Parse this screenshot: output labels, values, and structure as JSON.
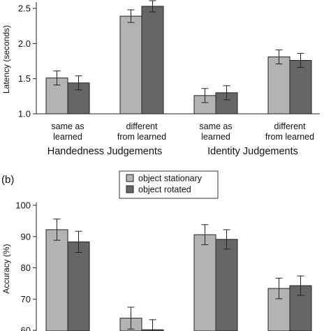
{
  "panel_b_label": "(b)",
  "legend": {
    "entries": [
      {
        "label": "object stationary",
        "color": "#b3b3b3"
      },
      {
        "label": "object rotated",
        "color": "#666666"
      }
    ]
  },
  "colors": {
    "stationary": "#b3b3b3",
    "rotated": "#666666"
  },
  "chart_data": [
    {
      "type": "bar",
      "panel": "a",
      "ylabel": "Latency (seconds)",
      "ylim": [
        1.0,
        2.55
      ],
      "yticks": [
        "1.0",
        "1.5",
        "2.0",
        "2.5"
      ],
      "ytick_values": [
        1.0,
        1.5,
        2.0,
        2.5
      ],
      "categories": [
        [
          "same as",
          "learned"
        ],
        [
          "different",
          "from learned"
        ],
        [
          "same as",
          "learned"
        ],
        [
          "different",
          "from learned"
        ]
      ],
      "groups": [
        "Handedness Judgements",
        "Identity Judgements"
      ],
      "series": [
        {
          "name": "object stationary",
          "values": [
            1.51,
            2.39,
            1.26,
            1.81
          ],
          "errors": [
            0.1,
            0.09,
            0.1,
            0.1
          ]
        },
        {
          "name": "object rotated",
          "values": [
            1.44,
            2.53,
            1.3,
            1.76
          ],
          "errors": [
            0.1,
            0.08,
            0.1,
            0.1
          ]
        }
      ],
      "grid": false
    },
    {
      "type": "bar",
      "panel": "b",
      "ylabel": "Accuracy (%)",
      "ylim": [
        58,
        100
      ],
      "yticks": [
        "60",
        "70",
        "80",
        "90",
        "100"
      ],
      "ytick_values": [
        60,
        70,
        80,
        90,
        100
      ],
      "series": [
        {
          "name": "object stationary",
          "values": [
            92.2,
            63.9,
            90.6,
            73.4
          ],
          "errors": [
            3.4,
            3.5,
            3.2,
            3.3
          ]
        },
        {
          "name": "object rotated",
          "values": [
            88.3,
            60.2,
            89.1,
            74.3
          ],
          "errors": [
            3.4,
            3.2,
            3.1,
            3.1
          ]
        }
      ],
      "legend_position": "top-center",
      "grid": false
    }
  ]
}
